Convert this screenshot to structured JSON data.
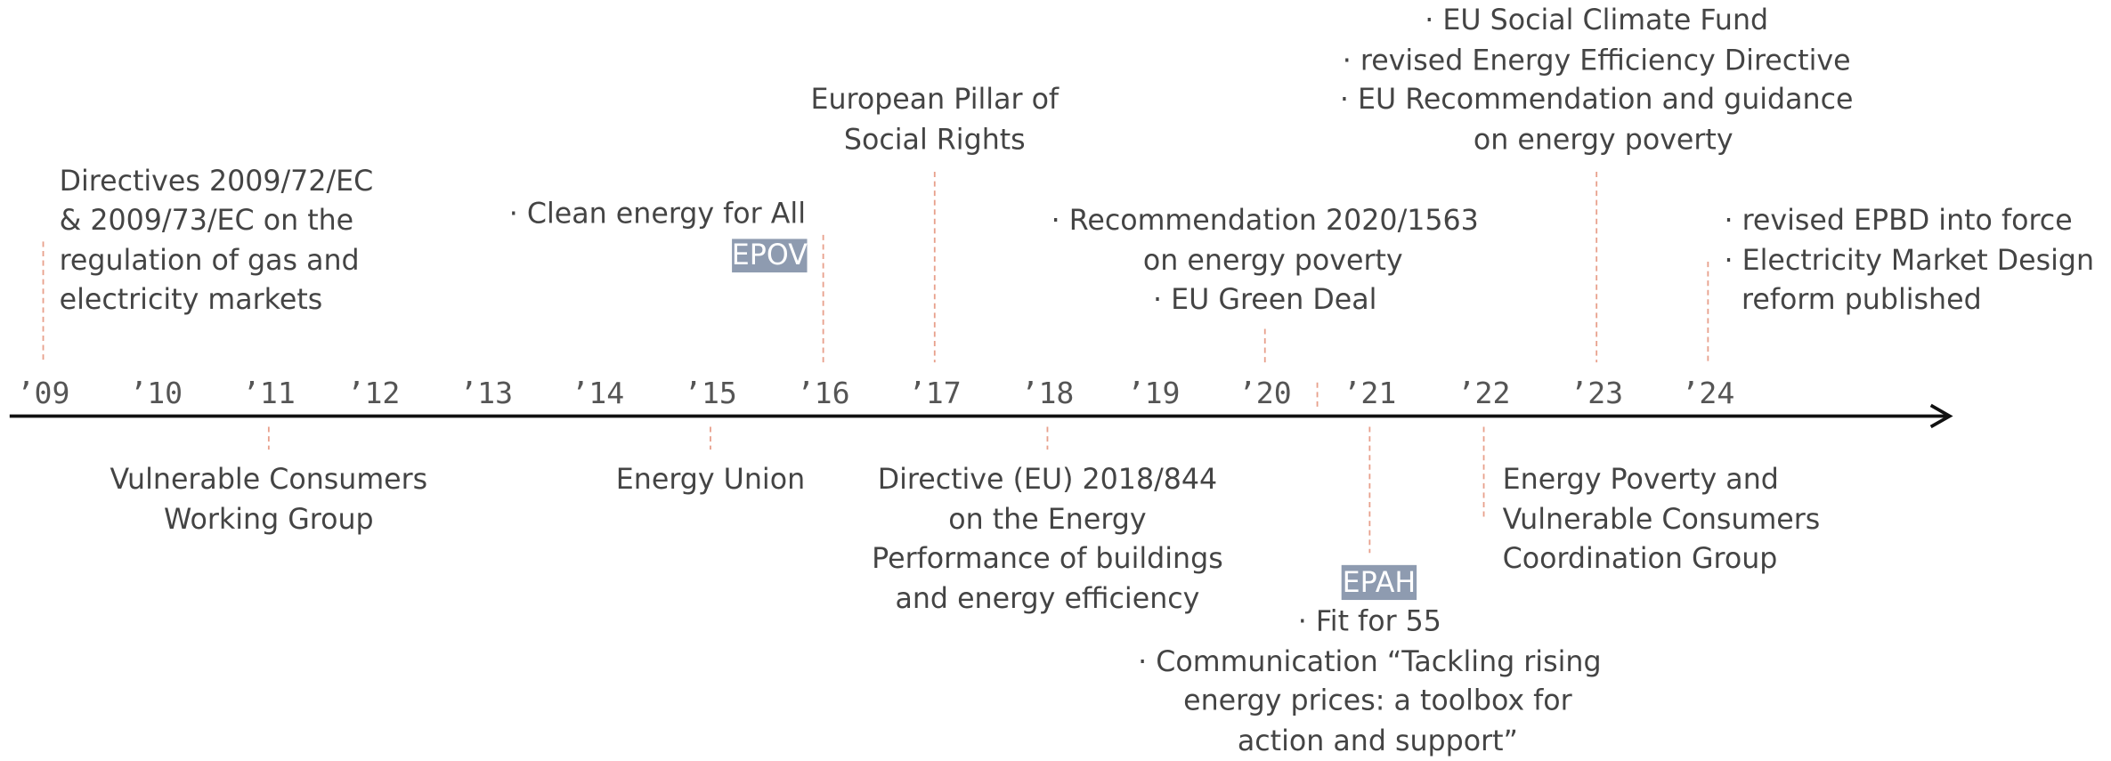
{
  "years": [
    "’09",
    "’10",
    "’11",
    "’12",
    "’13",
    "’14",
    "’15",
    "’16",
    "’17",
    "’18",
    "’19",
    "’20",
    "’21",
    "’22",
    "’23",
    "’24"
  ],
  "events_above": [
    {
      "lines": [
        "Directives 2009/72/EC",
        "& 2009/73/EC on the",
        "regulation of gas and",
        "electricity markets"
      ]
    },
    {
      "lines": [
        "· Clean energy for All"
      ],
      "badge": "EPOV"
    },
    {
      "lines": [
        "European Pillar of",
        "Social Rights"
      ]
    },
    {
      "lines": [
        "· Recommendation 2020/1563",
        "on energy poverty",
        "· EU Green Deal"
      ]
    },
    {
      "lines": [
        "· EU Social Climate Fund",
        "· revised Energy Efficiency Directive",
        "· EU Recommendation and guidance",
        "on energy poverty"
      ]
    },
    {
      "lines": [
        "· revised EPBD into force",
        "· Electricity Market Design",
        "reform published"
      ]
    }
  ],
  "events_below": [
    {
      "lines": [
        "Vulnerable Consumers",
        "Working Group"
      ]
    },
    {
      "lines": [
        "Energy Union"
      ]
    },
    {
      "lines": [
        "Directive (EU) 2018/844",
        "on the Energy",
        "Performance of buildings",
        "and energy efficiency"
      ]
    },
    {
      "badge": "EPAH",
      "lines": [
        "· Fit for 55",
        "· Communication “Tackling rising",
        "energy prices: a toolbox for",
        "action and support”"
      ]
    },
    {
      "lines": [
        "Energy Poverty and",
        "Vulnerable Consumers",
        "Coordination Group"
      ]
    }
  ]
}
